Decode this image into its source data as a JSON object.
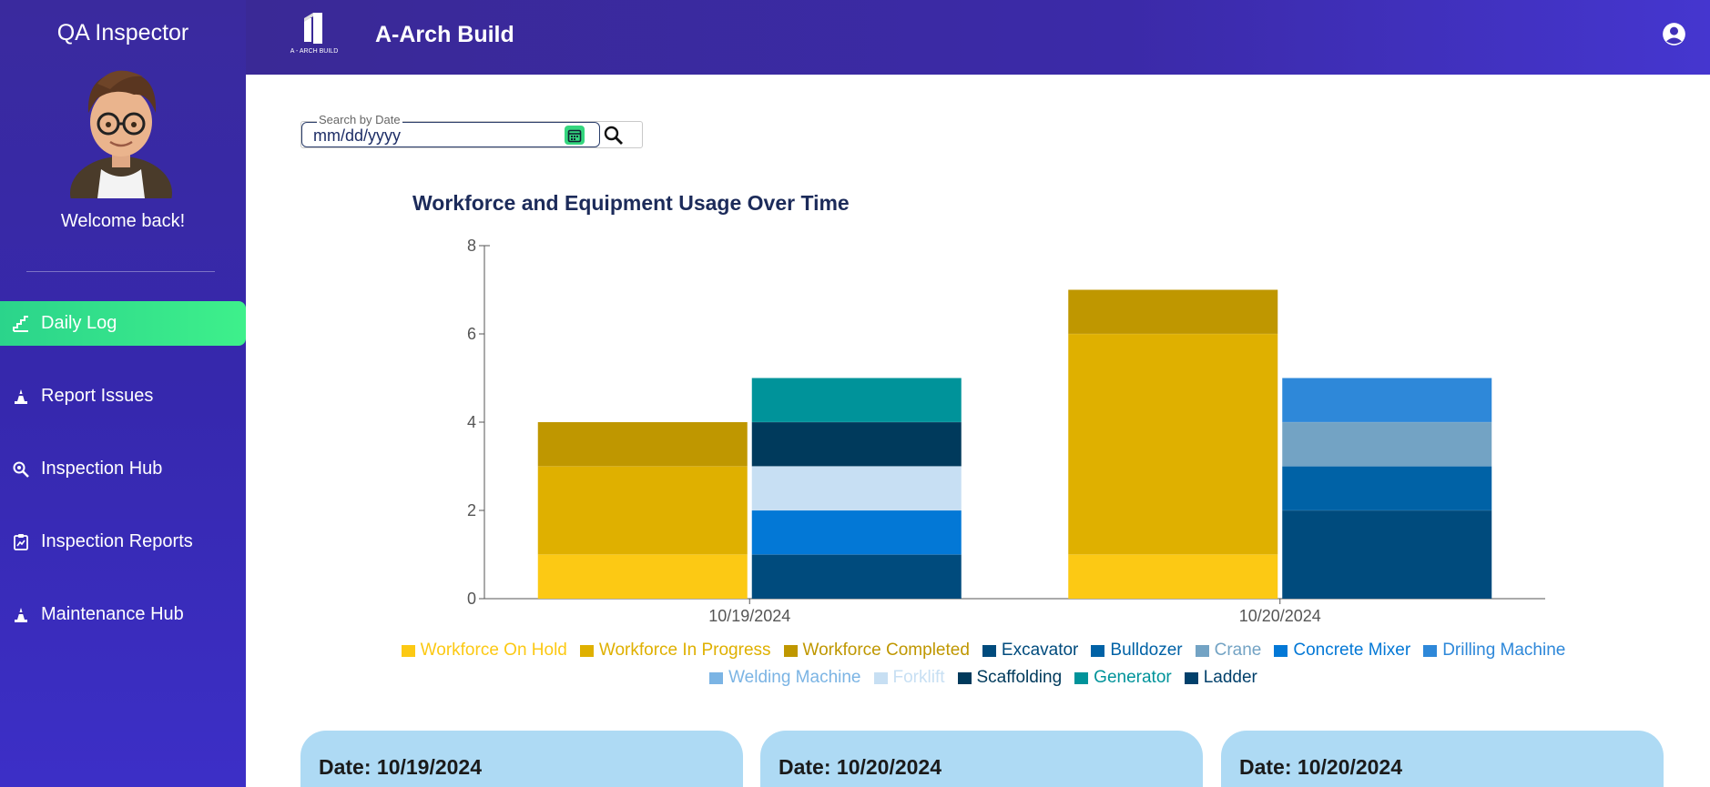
{
  "sidebar": {
    "title": "QA Inspector",
    "welcome": "Welcome back!",
    "items": [
      {
        "label": "Daily Log",
        "icon": "stairs-icon",
        "active": true
      },
      {
        "label": "Report Issues",
        "icon": "traffic-cone-icon",
        "active": false
      },
      {
        "label": "Inspection Hub",
        "icon": "magnify-icon",
        "active": false
      },
      {
        "label": "Inspection Reports",
        "icon": "clipboard-chart-icon",
        "active": false
      },
      {
        "label": "Maintenance Hub",
        "icon": "traffic-cone-icon",
        "active": false
      }
    ]
  },
  "header": {
    "brand": "A-Arch Build",
    "logo_text": "A - ARCH BUILD"
  },
  "search": {
    "legend": "Search by Date",
    "value": "mm/dd/yyyy"
  },
  "colors": {
    "sidebar_active": "#34e28a",
    "card_bg": "#aedaf4"
  },
  "chart_data": {
    "type": "bar",
    "stacked": true,
    "title": "Workforce and Equipment Usage Over Time",
    "categories": [
      "10/19/2024",
      "10/20/2024"
    ],
    "ylim": [
      0,
      8
    ],
    "yticks": [
      0,
      2,
      4,
      6,
      8
    ],
    "legend_position": "bottom",
    "groups": [
      {
        "name": "workforce",
        "series": [
          {
            "name": "Workforce On Hold",
            "color": "#fcc914",
            "values": [
              1,
              1
            ]
          },
          {
            "name": "Workforce In Progress",
            "color": "#dfb000",
            "values": [
              2,
              5
            ]
          },
          {
            "name": "Workforce Completed",
            "color": "#bf9700",
            "values": [
              1,
              1
            ]
          }
        ]
      },
      {
        "name": "equipment",
        "series": [
          {
            "name": "Excavator",
            "color": "#004b7d",
            "values": [
              1,
              2
            ]
          },
          {
            "name": "Bulldozer",
            "color": "#0062a6",
            "values": [
              0,
              1
            ]
          },
          {
            "name": "Crane",
            "color": "#73a3c4",
            "values": [
              0,
              1
            ]
          },
          {
            "name": "Concrete Mixer",
            "color": "#0378d6",
            "values": [
              1,
              0
            ]
          },
          {
            "name": "Drilling Machine",
            "color": "#2e88d9",
            "values": [
              0,
              1
            ]
          },
          {
            "name": "Welding Machine",
            "color": "#7bb4e4",
            "values": [
              0,
              0
            ]
          },
          {
            "name": "Forklift",
            "color": "#c7dff3",
            "values": [
              1,
              0
            ]
          },
          {
            "name": "Scaffolding",
            "color": "#003a5c",
            "values": [
              1,
              0
            ]
          },
          {
            "name": "Generator",
            "color": "#00939a",
            "values": [
              1,
              0
            ]
          },
          {
            "name": "Ladder",
            "color": "#01406b",
            "values": [
              0,
              0
            ]
          }
        ]
      }
    ]
  },
  "cards": [
    {
      "date": "Date: 10/19/2024"
    },
    {
      "date": "Date: 10/20/2024"
    },
    {
      "date": "Date: 10/20/2024"
    }
  ]
}
